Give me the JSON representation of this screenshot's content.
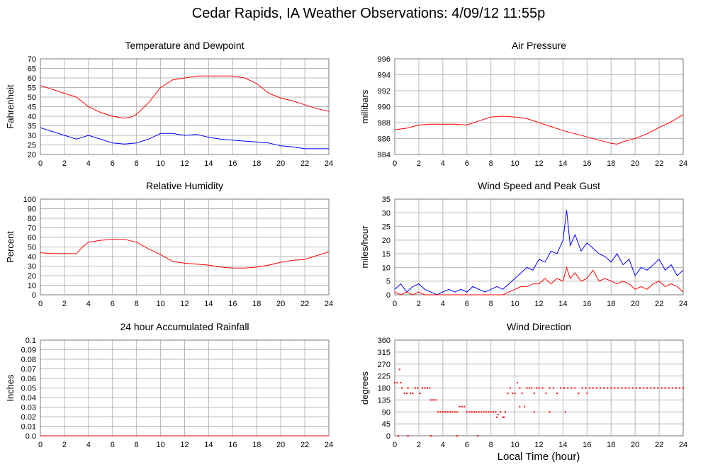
{
  "figure": {
    "title": "Cedar Rapids, IA Weather Observations: 4/09/12 11:55p",
    "xlabel": "Local Time (hour)"
  },
  "colors": {
    "red": "#ff0000",
    "blue": "#0000ff"
  },
  "chart_data": [
    {
      "id": "temperature",
      "type": "line",
      "title": "Temperature and Dewpoint",
      "ylabel": "Fahrenheit",
      "xlim": [
        0,
        24
      ],
      "ylim": [
        20,
        70
      ],
      "xticks": [
        0,
        2,
        4,
        6,
        8,
        10,
        12,
        14,
        16,
        18,
        20,
        22,
        24
      ],
      "yticks": [
        20,
        25,
        30,
        35,
        40,
        45,
        50,
        55,
        60,
        65,
        70
      ],
      "grid": true,
      "series": [
        {
          "color": "#ff0000",
          "x": [
            0,
            1,
            2,
            3,
            4,
            5,
            6,
            7,
            7.5,
            8,
            9,
            10,
            11,
            12,
            13,
            14,
            15,
            16,
            17,
            18,
            19,
            20,
            21,
            22,
            23,
            24
          ],
          "y": [
            56,
            54,
            52,
            50,
            45,
            42,
            40,
            39,
            39.5,
            41,
            47,
            55,
            59,
            60,
            61,
            61,
            61,
            61,
            60,
            57,
            52,
            49.5,
            48,
            46,
            44,
            42.5
          ]
        },
        {
          "color": "#0000ff",
          "x": [
            0,
            1,
            2,
            3,
            4,
            5,
            6,
            7,
            8,
            9,
            10,
            11,
            12,
            13,
            14,
            15,
            16,
            17,
            18,
            19,
            20,
            21,
            22,
            23,
            24
          ],
          "y": [
            34,
            32,
            30,
            28,
            30,
            28,
            26,
            25.5,
            26,
            28,
            31,
            31,
            30,
            30.5,
            29,
            28,
            27.5,
            27,
            26.5,
            26,
            24.5,
            24,
            23,
            23,
            23
          ]
        }
      ]
    },
    {
      "id": "pressure",
      "type": "line",
      "title": "Air Pressure",
      "ylabel": "millibars",
      "xlim": [
        0,
        24
      ],
      "ylim": [
        984,
        996
      ],
      "xticks": [
        0,
        2,
        4,
        6,
        8,
        10,
        12,
        14,
        16,
        18,
        20,
        22,
        24
      ],
      "yticks": [
        984,
        986,
        988,
        990,
        992,
        994,
        996
      ],
      "grid": true,
      "series": [
        {
          "color": "#ff0000",
          "x": [
            0,
            1,
            2,
            3,
            4,
            5,
            6,
            7,
            8,
            9,
            10,
            11,
            12,
            13,
            14,
            15,
            16,
            17,
            18,
            18.5,
            19,
            20,
            21,
            22,
            23,
            24
          ],
          "y": [
            987.1,
            987.3,
            987.7,
            987.8,
            987.8,
            987.8,
            987.7,
            988.2,
            988.7,
            988.8,
            988.7,
            988.5,
            988.0,
            987.5,
            987.0,
            986.6,
            986.2,
            985.8,
            985.4,
            985.3,
            985.6,
            986.0,
            986.6,
            987.4,
            988.1,
            989.0
          ]
        }
      ]
    },
    {
      "id": "humidity",
      "type": "line",
      "title": "Relative Humidity",
      "ylabel": "Percent",
      "xlim": [
        0,
        24
      ],
      "ylim": [
        0,
        100
      ],
      "xticks": [
        0,
        2,
        4,
        6,
        8,
        10,
        12,
        14,
        16,
        18,
        20,
        22,
        24
      ],
      "yticks": [
        0,
        10,
        20,
        30,
        40,
        50,
        60,
        70,
        80,
        90,
        100
      ],
      "grid": true,
      "series": [
        {
          "color": "#ff0000",
          "x": [
            0,
            1,
            2,
            3,
            3.5,
            4,
            5,
            6,
            7,
            8,
            9,
            10,
            11,
            12,
            13,
            14,
            15,
            16,
            17,
            18,
            19,
            20,
            21,
            22,
            23,
            24
          ],
          "y": [
            44,
            43,
            43,
            43,
            50,
            55,
            57,
            58,
            58,
            55,
            48,
            42,
            35,
            33,
            32,
            31,
            29,
            28,
            28,
            29,
            31,
            34,
            36,
            37,
            41,
            45
          ]
        }
      ]
    },
    {
      "id": "wind",
      "type": "line",
      "title": "Wind Speed and Peak Gust",
      "ylabel": "miles/hour",
      "xlim": [
        0,
        24
      ],
      "ylim": [
        0,
        35
      ],
      "xticks": [
        0,
        2,
        4,
        6,
        8,
        10,
        12,
        14,
        16,
        18,
        20,
        22,
        24
      ],
      "yticks": [
        0,
        5,
        10,
        15,
        20,
        25,
        30,
        35
      ],
      "grid": true,
      "series": [
        {
          "color": "#0000ff",
          "x": [
            0,
            0.5,
            1,
            1.5,
            2,
            2.5,
            3,
            3.5,
            4,
            4.5,
            5,
            5.5,
            6,
            6.5,
            7,
            7.5,
            8,
            8.5,
            9,
            9.5,
            10,
            10.5,
            11,
            11.5,
            12,
            12.5,
            13,
            13.5,
            14,
            14.3,
            14.6,
            15,
            15.5,
            16,
            16.5,
            17,
            17.5,
            18,
            18.5,
            19,
            19.5,
            20,
            20.5,
            21,
            21.5,
            22,
            22.5,
            23,
            23.5,
            24
          ],
          "y": [
            2,
            4,
            1,
            3,
            4,
            2,
            1,
            0,
            1,
            2,
            1,
            2,
            1,
            3,
            2,
            1,
            2,
            3,
            2,
            4,
            6,
            8,
            10,
            9,
            13,
            12,
            16,
            15,
            20,
            31,
            18,
            22,
            16,
            19,
            17,
            15,
            14,
            12,
            15,
            11,
            13,
            7,
            10,
            9,
            11,
            13,
            9,
            11,
            7,
            9
          ]
        },
        {
          "color": "#ff0000",
          "x": [
            0,
            0.5,
            1,
            1.5,
            2,
            2.5,
            3,
            9,
            9.5,
            10,
            10.5,
            11,
            11.5,
            12,
            12.5,
            13,
            13.5,
            14,
            14.3,
            14.6,
            15,
            15.5,
            16,
            16.5,
            17,
            17.5,
            18,
            18.5,
            19,
            19.5,
            20,
            20.5,
            21,
            21.5,
            22,
            22.5,
            23,
            23.5,
            24
          ],
          "y": [
            1,
            0,
            1,
            0,
            1,
            0,
            0,
            0,
            1,
            2,
            3,
            3,
            4,
            4,
            6,
            4,
            6,
            5,
            10,
            6,
            8,
            5,
            6,
            9,
            5,
            6,
            5,
            4,
            5,
            4,
            2,
            3,
            2,
            4,
            5,
            3,
            4,
            3,
            1
          ]
        }
      ]
    },
    {
      "id": "rainfall",
      "type": "line",
      "title": "24 hour Accumulated Rainfall",
      "ylabel": "Inches",
      "xlim": [
        0,
        24
      ],
      "ylim": [
        0,
        0.1
      ],
      "xticks": [
        0,
        2,
        4,
        6,
        8,
        10,
        12,
        14,
        16,
        18,
        20,
        22,
        24
      ],
      "yticks": [
        0,
        0.01,
        0.02,
        0.03,
        0.04,
        0.05,
        0.06,
        0.07,
        0.08,
        0.09,
        0.1
      ],
      "ytick_labels": [
        "0.0",
        "0.01",
        "0.02",
        "0.03",
        "0.04",
        "0.05",
        "0.06",
        "0.07",
        "0.08",
        "0.09",
        "0.1"
      ],
      "grid": true,
      "series": [
        {
          "color": "#ff0000",
          "x": [
            0,
            24
          ],
          "y": [
            0,
            0
          ]
        }
      ]
    },
    {
      "id": "direction",
      "type": "scatter",
      "title": "Wind Direction",
      "ylabel": "degrees",
      "xlim": [
        0,
        24
      ],
      "ylim": [
        0,
        360
      ],
      "xticks": [
        0,
        2,
        4,
        6,
        8,
        10,
        12,
        14,
        16,
        18,
        20,
        22,
        24
      ],
      "yticks": [
        0,
        45,
        90,
        135,
        180,
        225,
        270,
        315,
        360
      ],
      "grid": true,
      "series": [
        {
          "color": "#ff0000",
          "x": [
            0,
            0.2,
            0.4,
            0.5,
            0.6,
            0.8,
            1,
            1.1,
            1.3,
            1.5,
            1.7,
            1.9,
            2.1,
            2.3,
            2.5,
            2.7,
            2.9,
            3,
            3.2,
            3.4,
            3.6,
            3.8,
            4,
            4.2,
            4.4,
            4.6,
            4.8,
            5,
            5.2,
            5.4,
            5.6,
            5.8,
            6,
            6.2,
            6.4,
            6.6,
            6.8,
            7,
            7.2,
            7.4,
            7.6,
            7.8,
            8,
            8.2,
            8.4,
            8.6,
            8.8,
            9,
            9.2,
            9.4,
            9.6,
            9.8,
            10,
            10.2,
            10.4,
            10.6,
            10.8,
            11,
            11.2,
            11.4,
            11.6,
            11.8,
            12,
            12.3,
            12.6,
            12.9,
            13.2,
            13.5,
            13.8,
            14.1,
            14.4,
            14.7,
            15,
            15.3,
            15.6,
            15.9,
            16.2,
            16.5,
            16.8,
            17.1,
            17.4,
            17.7,
            18,
            18.3,
            18.6,
            18.9,
            19.2,
            19.5,
            19.8,
            20.1,
            20.4,
            20.7,
            21,
            21.3,
            21.6,
            21.9,
            22.2,
            22.5,
            22.8,
            23.1,
            23.4,
            23.7,
            24,
            0.3,
            1.1,
            3,
            6.9,
            10.4,
            11.6,
            12.9,
            14.2,
            16,
            5.2,
            8.5,
            9.1
          ],
          "y": [
            200,
            200,
            250,
            200,
            180,
            160,
            160,
            180,
            160,
            160,
            180,
            180,
            160,
            180,
            180,
            180,
            180,
            135,
            135,
            135,
            90,
            90,
            90,
            90,
            90,
            90,
            90,
            90,
            90,
            110,
            110,
            110,
            90,
            90,
            90,
            90,
            90,
            90,
            90,
            90,
            90,
            90,
            90,
            90,
            90,
            80,
            90,
            70,
            90,
            160,
            180,
            160,
            160,
            200,
            180,
            160,
            110,
            180,
            180,
            180,
            160,
            180,
            180,
            180,
            160,
            180,
            180,
            160,
            180,
            180,
            180,
            180,
            180,
            160,
            180,
            180,
            180,
            180,
            180,
            180,
            180,
            180,
            180,
            180,
            180,
            180,
            180,
            180,
            180,
            180,
            180,
            180,
            180,
            180,
            180,
            180,
            180,
            180,
            180,
            180,
            180,
            180,
            180,
            0,
            0,
            0,
            0,
            110,
            90,
            90,
            90,
            160,
            0,
            70,
            70
          ]
        }
      ]
    }
  ]
}
